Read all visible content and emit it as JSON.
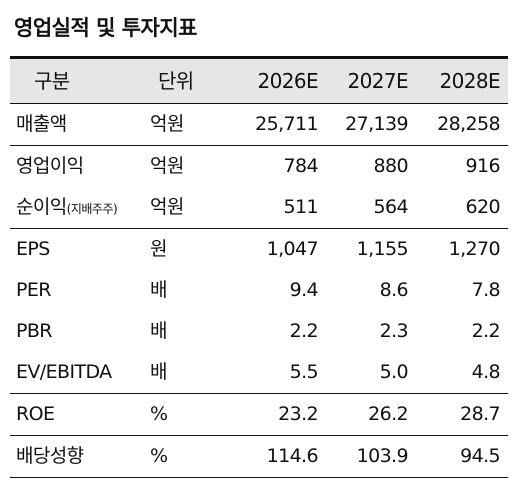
{
  "title": "영업실적 및 투자지표",
  "table": {
    "header": [
      "구분",
      "단위",
      "2026E",
      "2027E",
      "2028E"
    ],
    "groups": [
      [
        {
          "label": "매출액",
          "unit": "억원",
          "values": [
            "25,711",
            "27,139",
            "28,258"
          ]
        }
      ],
      [
        {
          "label": "영업이익",
          "unit": "억원",
          "values": [
            "784",
            "880",
            "916"
          ]
        },
        {
          "label": "순이익",
          "sub": "(지배주주)",
          "unit": "억원",
          "values": [
            "511",
            "564",
            "620"
          ]
        }
      ],
      [
        {
          "label": "EPS",
          "unit": "원",
          "values": [
            "1,047",
            "1,155",
            "1,270"
          ]
        },
        {
          "label": "PER",
          "unit": "배",
          "values": [
            "9.4",
            "8.6",
            "7.8"
          ]
        },
        {
          "label": "PBR",
          "unit": "배",
          "values": [
            "2.2",
            "2.3",
            "2.2"
          ]
        },
        {
          "label": "EV/EBITDA",
          "unit": "배",
          "values": [
            "5.5",
            "5.0",
            "4.8"
          ]
        }
      ],
      [
        {
          "label": "ROE",
          "unit": "%",
          "values": [
            "23.2",
            "26.2",
            "28.7"
          ]
        }
      ],
      [
        {
          "label": "배당성향",
          "unit": "%",
          "values": [
            "114.6",
            "103.9",
            "94.5"
          ]
        }
      ]
    ]
  }
}
